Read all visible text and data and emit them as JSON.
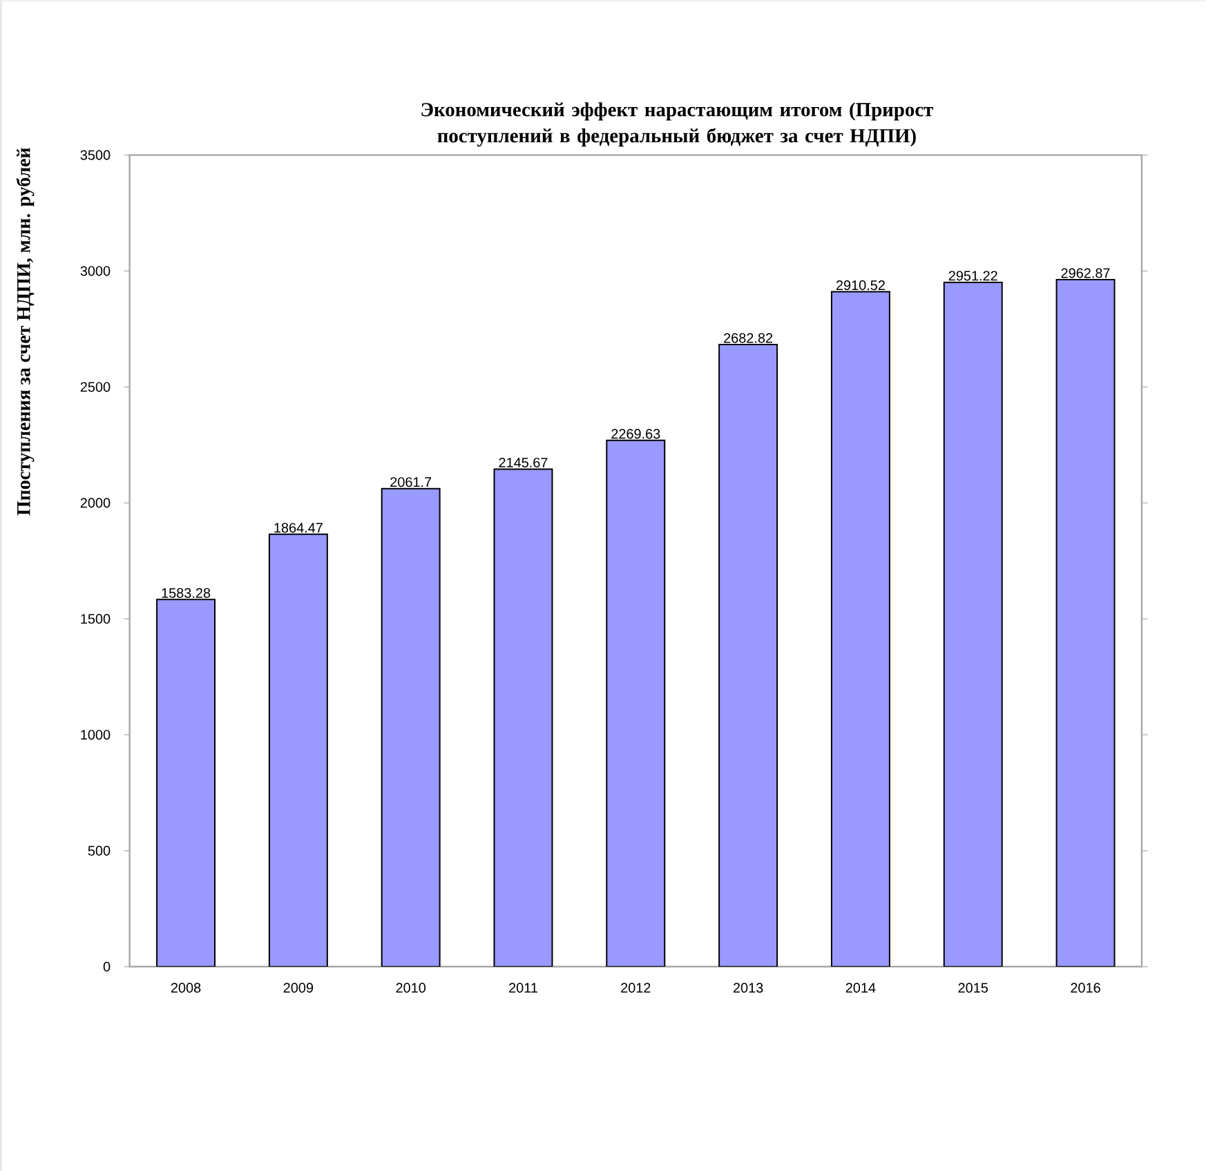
{
  "chart_data": {
    "type": "bar",
    "title": "Экономический эффект нарастающим итогом (Прирост поступлений в федеральный бюджет за счет НДПИ)",
    "ylabel": "Ппоступления  за счет НДПИ,  млн. рублей",
    "categories": [
      "2008",
      "2009",
      "2010",
      "2011",
      "2012",
      "2013",
      "2014",
      "2015",
      "2016"
    ],
    "values": [
      1583.28,
      1864.47,
      2061.7,
      2145.67,
      2269.63,
      2682.82,
      2910.52,
      2951.22,
      2962.87
    ],
    "color": "#9999ff",
    "ylim": [
      0,
      3500
    ],
    "yticks": [
      0,
      500,
      1000,
      1500,
      2000,
      2500,
      3000,
      3500
    ],
    "data_labels": true
  }
}
